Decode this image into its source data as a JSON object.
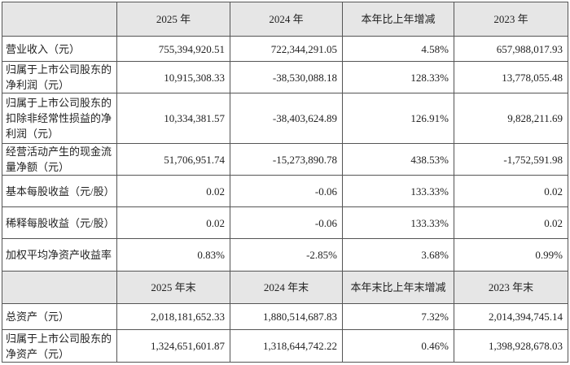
{
  "table": {
    "header": [
      "2025 年",
      "2024 年",
      "本年比上年增减",
      "2023 年"
    ],
    "rows": [
      {
        "label": "营业收入（元）",
        "values": [
          "755,394,920.51",
          "722,344,291.05",
          "4.58%",
          "657,988,017.93"
        ]
      },
      {
        "label": "归属于上市公司股东的净利润（元）",
        "values": [
          "10,915,308.33",
          "-38,530,088.18",
          "128.33%",
          "13,778,055.48"
        ]
      },
      {
        "label": "归属于上市公司股东的扣除非经常性损益的净利润（元）",
        "values": [
          "10,334,381.57",
          "-38,403,624.89",
          "126.91%",
          "9,828,211.69"
        ]
      },
      {
        "label": "经营活动产生的现金流量净额（元）",
        "values": [
          "51,706,951.74",
          "-15,273,890.78",
          "438.53%",
          "-1,752,591.98"
        ]
      },
      {
        "label": "基本每股收益（元/股）",
        "values": [
          "0.02",
          "-0.06",
          "133.33%",
          "0.02"
        ]
      },
      {
        "label": "稀释每股收益（元/股）",
        "values": [
          "0.02",
          "-0.06",
          "133.33%",
          "0.02"
        ]
      },
      {
        "label": "加权平均净资产收益率",
        "values": [
          "0.83%",
          "-2.85%",
          "3.68%",
          "0.99%"
        ]
      }
    ],
    "header2": [
      "2025 年末",
      "2024 年末",
      "本年末比上年末增减",
      "2023 年末"
    ],
    "rows2": [
      {
        "label": "总资产（元）",
        "values": [
          "2,018,181,652.33",
          "1,880,514,687.83",
          "7.32%",
          "2,014,394,745.14"
        ]
      },
      {
        "label": "归属于上市公司股东的净资产（元）",
        "values": [
          "1,324,651,601.87",
          "1,318,644,742.22",
          "0.46%",
          "1,398,928,678.03"
        ]
      }
    ]
  }
}
